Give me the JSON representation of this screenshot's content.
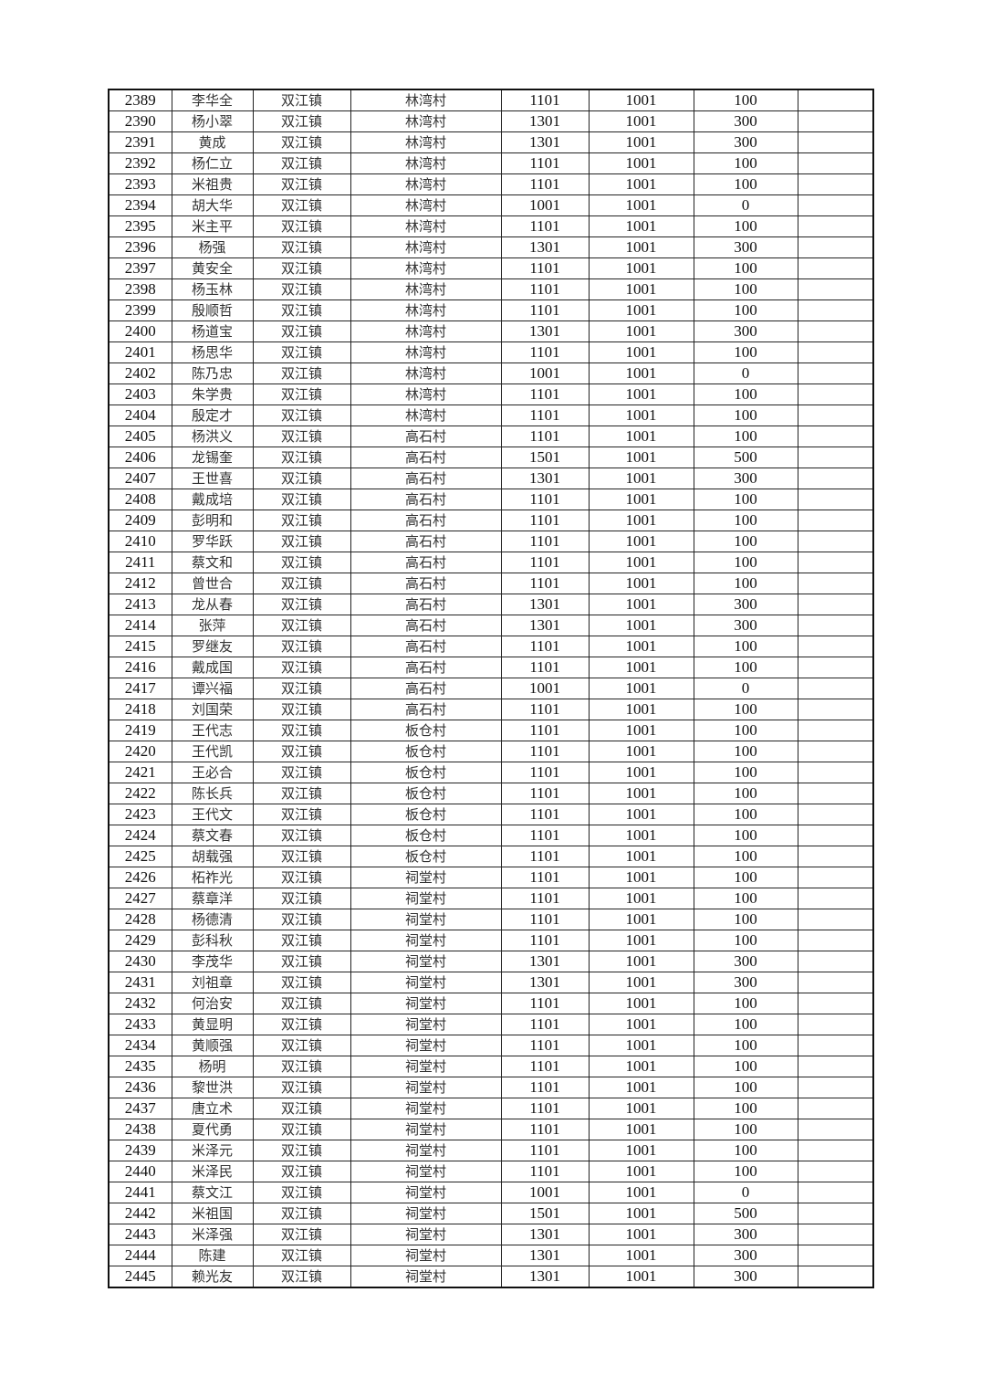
{
  "table": {
    "rows": [
      [
        "2389",
        "李华全",
        "双江镇",
        "林湾村",
        "1101",
        "1001",
        "100",
        ""
      ],
      [
        "2390",
        "杨小翠",
        "双江镇",
        "林湾村",
        "1301",
        "1001",
        "300",
        ""
      ],
      [
        "2391",
        "黄成",
        "双江镇",
        "林湾村",
        "1301",
        "1001",
        "300",
        ""
      ],
      [
        "2392",
        "杨仁立",
        "双江镇",
        "林湾村",
        "1101",
        "1001",
        "100",
        ""
      ],
      [
        "2393",
        "米祖贵",
        "双江镇",
        "林湾村",
        "1101",
        "1001",
        "100",
        ""
      ],
      [
        "2394",
        "胡大华",
        "双江镇",
        "林湾村",
        "1001",
        "1001",
        "0",
        ""
      ],
      [
        "2395",
        "米主平",
        "双江镇",
        "林湾村",
        "1101",
        "1001",
        "100",
        ""
      ],
      [
        "2396",
        "杨强",
        "双江镇",
        "林湾村",
        "1301",
        "1001",
        "300",
        ""
      ],
      [
        "2397",
        "黄安全",
        "双江镇",
        "林湾村",
        "1101",
        "1001",
        "100",
        ""
      ],
      [
        "2398",
        "杨玉林",
        "双江镇",
        "林湾村",
        "1101",
        "1001",
        "100",
        ""
      ],
      [
        "2399",
        "殷顺哲",
        "双江镇",
        "林湾村",
        "1101",
        "1001",
        "100",
        ""
      ],
      [
        "2400",
        "杨道宝",
        "双江镇",
        "林湾村",
        "1301",
        "1001",
        "300",
        ""
      ],
      [
        "2401",
        "杨思华",
        "双江镇",
        "林湾村",
        "1101",
        "1001",
        "100",
        ""
      ],
      [
        "2402",
        "陈乃忠",
        "双江镇",
        "林湾村",
        "1001",
        "1001",
        "0",
        ""
      ],
      [
        "2403",
        "朱学贵",
        "双江镇",
        "林湾村",
        "1101",
        "1001",
        "100",
        ""
      ],
      [
        "2404",
        "殷定才",
        "双江镇",
        "林湾村",
        "1101",
        "1001",
        "100",
        ""
      ],
      [
        "2405",
        "杨洪义",
        "双江镇",
        "高石村",
        "1101",
        "1001",
        "100",
        ""
      ],
      [
        "2406",
        "龙锡奎",
        "双江镇",
        "高石村",
        "1501",
        "1001",
        "500",
        ""
      ],
      [
        "2407",
        "王世喜",
        "双江镇",
        "高石村",
        "1301",
        "1001",
        "300",
        ""
      ],
      [
        "2408",
        "戴成培",
        "双江镇",
        "高石村",
        "1101",
        "1001",
        "100",
        ""
      ],
      [
        "2409",
        "彭明和",
        "双江镇",
        "高石村",
        "1101",
        "1001",
        "100",
        ""
      ],
      [
        "2410",
        "罗华跃",
        "双江镇",
        "高石村",
        "1101",
        "1001",
        "100",
        ""
      ],
      [
        "2411",
        "蔡文和",
        "双江镇",
        "高石村",
        "1101",
        "1001",
        "100",
        ""
      ],
      [
        "2412",
        "曾世合",
        "双江镇",
        "高石村",
        "1101",
        "1001",
        "100",
        ""
      ],
      [
        "2413",
        "龙从春",
        "双江镇",
        "高石村",
        "1301",
        "1001",
        "300",
        ""
      ],
      [
        "2414",
        "张萍",
        "双江镇",
        "高石村",
        "1301",
        "1001",
        "300",
        ""
      ],
      [
        "2415",
        "罗继友",
        "双江镇",
        "高石村",
        "1101",
        "1001",
        "100",
        ""
      ],
      [
        "2416",
        "戴成国",
        "双江镇",
        "高石村",
        "1101",
        "1001",
        "100",
        ""
      ],
      [
        "2417",
        "谭兴福",
        "双江镇",
        "高石村",
        "1001",
        "1001",
        "0",
        ""
      ],
      [
        "2418",
        "刘国荣",
        "双江镇",
        "高石村",
        "1101",
        "1001",
        "100",
        ""
      ],
      [
        "2419",
        "王代志",
        "双江镇",
        "板仓村",
        "1101",
        "1001",
        "100",
        ""
      ],
      [
        "2420",
        "王代凯",
        "双江镇",
        "板仓村",
        "1101",
        "1001",
        "100",
        ""
      ],
      [
        "2421",
        "王必合",
        "双江镇",
        "板仓村",
        "1101",
        "1001",
        "100",
        ""
      ],
      [
        "2422",
        "陈长兵",
        "双江镇",
        "板仓村",
        "1101",
        "1001",
        "100",
        ""
      ],
      [
        "2423",
        "王代文",
        "双江镇",
        "板仓村",
        "1101",
        "1001",
        "100",
        ""
      ],
      [
        "2424",
        "蔡文春",
        "双江镇",
        "板仓村",
        "1101",
        "1001",
        "100",
        ""
      ],
      [
        "2425",
        "胡载强",
        "双江镇",
        "板仓村",
        "1101",
        "1001",
        "100",
        ""
      ],
      [
        "2426",
        "柘祚光",
        "双江镇",
        "祠堂村",
        "1101",
        "1001",
        "100",
        ""
      ],
      [
        "2427",
        "蔡章洋",
        "双江镇",
        "祠堂村",
        "1101",
        "1001",
        "100",
        ""
      ],
      [
        "2428",
        "杨德清",
        "双江镇",
        "祠堂村",
        "1101",
        "1001",
        "100",
        ""
      ],
      [
        "2429",
        "彭科秋",
        "双江镇",
        "祠堂村",
        "1101",
        "1001",
        "100",
        ""
      ],
      [
        "2430",
        "李茂华",
        "双江镇",
        "祠堂村",
        "1301",
        "1001",
        "300",
        ""
      ],
      [
        "2431",
        "刘祖章",
        "双江镇",
        "祠堂村",
        "1301",
        "1001",
        "300",
        ""
      ],
      [
        "2432",
        "何治安",
        "双江镇",
        "祠堂村",
        "1101",
        "1001",
        "100",
        ""
      ],
      [
        "2433",
        "黄显明",
        "双江镇",
        "祠堂村",
        "1101",
        "1001",
        "100",
        ""
      ],
      [
        "2434",
        "黄顺强",
        "双江镇",
        "祠堂村",
        "1101",
        "1001",
        "100",
        ""
      ],
      [
        "2435",
        "杨明",
        "双江镇",
        "祠堂村",
        "1101",
        "1001",
        "100",
        ""
      ],
      [
        "2436",
        "黎世洪",
        "双江镇",
        "祠堂村",
        "1101",
        "1001",
        "100",
        ""
      ],
      [
        "2437",
        "唐立术",
        "双江镇",
        "祠堂村",
        "1101",
        "1001",
        "100",
        ""
      ],
      [
        "2438",
        "夏代勇",
        "双江镇",
        "祠堂村",
        "1101",
        "1001",
        "100",
        ""
      ],
      [
        "2439",
        "米泽元",
        "双江镇",
        "祠堂村",
        "1101",
        "1001",
        "100",
        ""
      ],
      [
        "2440",
        "米泽民",
        "双江镇",
        "祠堂村",
        "1101",
        "1001",
        "100",
        ""
      ],
      [
        "2441",
        "蔡文江",
        "双江镇",
        "祠堂村",
        "1001",
        "1001",
        "0",
        ""
      ],
      [
        "2442",
        "米祖国",
        "双江镇",
        "祠堂村",
        "1501",
        "1001",
        "500",
        ""
      ],
      [
        "2443",
        "米泽强",
        "双江镇",
        "祠堂村",
        "1301",
        "1001",
        "300",
        ""
      ],
      [
        "2444",
        "陈建",
        "双江镇",
        "祠堂村",
        "1301",
        "1001",
        "300",
        ""
      ],
      [
        "2445",
        "赖光友",
        "双江镇",
        "祠堂村",
        "1301",
        "1001",
        "300",
        ""
      ]
    ]
  }
}
